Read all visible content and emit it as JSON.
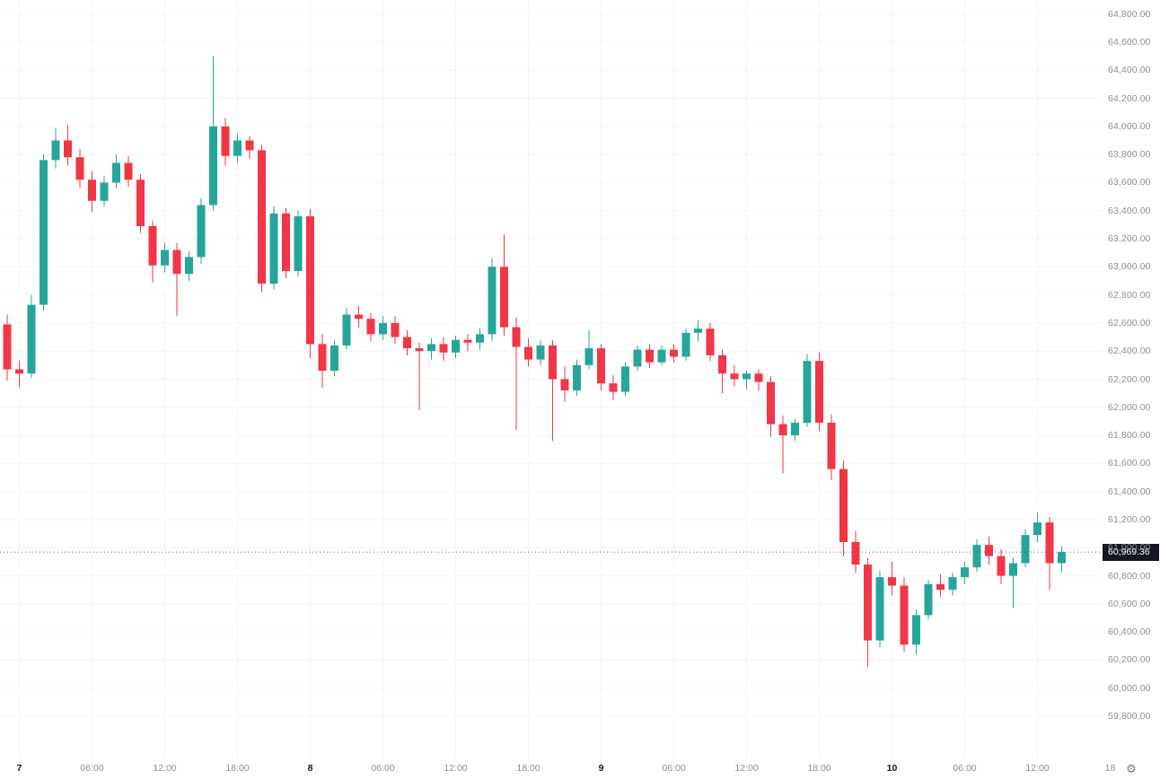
{
  "chart_data": {
    "type": "candlestick",
    "title": "",
    "last_price": 60969.36,
    "last_price_label": "60,969.36",
    "colors": {
      "up": "#26a69a",
      "down": "#f23645",
      "grid": "#f2f4f7",
      "last_price_line": "#555b66",
      "axis_text": "#8a8e99",
      "axis_text_major": "#131722",
      "badge_bg": "#131722",
      "badge_text": "#ffffff"
    },
    "axis": {
      "price_min": 59500,
      "price_max": 64900,
      "price_tick_step": 200,
      "price_ticks": [
        64800,
        64600,
        64400,
        64200,
        64000,
        63800,
        63600,
        63400,
        63200,
        63000,
        62800,
        62600,
        62400,
        62200,
        62000,
        61800,
        61600,
        61400,
        61200,
        61000,
        60800,
        60600,
        60400,
        60200,
        60000,
        59800
      ],
      "price_tick_labels": [
        "64,800.00",
        "64,600.00",
        "64,400.00",
        "64,200.00",
        "64,000.00",
        "63,800.00",
        "63,600.00",
        "63,400.00",
        "63,200.00",
        "63,000.00",
        "62,800.00",
        "62,600.00",
        "62,400.00",
        "62,200.00",
        "62,000.00",
        "61,800.00",
        "61,600.00",
        "61,400.00",
        "61,200.00",
        "61,000.00",
        "60,800.00",
        "60,600.00",
        "60,400.00",
        "60,200.00",
        "60,000.00",
        "59,800.00"
      ],
      "grid_on": true
    },
    "time_ticks": [
      {
        "index": 1,
        "label": "7",
        "major": true
      },
      {
        "index": 7,
        "label": "06:00",
        "major": false
      },
      {
        "index": 13,
        "label": "12:00",
        "major": false
      },
      {
        "index": 19,
        "label": "18:00",
        "major": false
      },
      {
        "index": 25,
        "label": "8",
        "major": true
      },
      {
        "index": 31,
        "label": "06:00",
        "major": false
      },
      {
        "index": 37,
        "label": "12:00",
        "major": false
      },
      {
        "index": 43,
        "label": "18:00",
        "major": false
      },
      {
        "index": 49,
        "label": "9",
        "major": true
      },
      {
        "index": 55,
        "label": "06:00",
        "major": false
      },
      {
        "index": 61,
        "label": "12:00",
        "major": false
      },
      {
        "index": 67,
        "label": "18:00",
        "major": false
      },
      {
        "index": 73,
        "label": "10",
        "major": true
      },
      {
        "index": 79,
        "label": "06:00",
        "major": false
      },
      {
        "index": 85,
        "label": "12:00",
        "major": false
      },
      {
        "index": 91,
        "label": "18",
        "major": false
      }
    ],
    "candles_format": [
      "open",
      "high",
      "low",
      "close"
    ],
    "candles": [
      [
        62590,
        62660,
        62190,
        62270
      ],
      [
        62270,
        62330,
        62140,
        62240
      ],
      [
        62240,
        62800,
        62210,
        62730
      ],
      [
        62730,
        63800,
        62690,
        63760
      ],
      [
        63760,
        63990,
        63700,
        63900
      ],
      [
        63900,
        64010,
        63720,
        63780
      ],
      [
        63780,
        63840,
        63560,
        63620
      ],
      [
        63620,
        63680,
        63390,
        63470
      ],
      [
        63470,
        63650,
        63430,
        63600
      ],
      [
        63600,
        63800,
        63560,
        63740
      ],
      [
        63740,
        63790,
        63570,
        63620
      ],
      [
        63620,
        63660,
        63240,
        63290
      ],
      [
        63290,
        63330,
        62890,
        63010
      ],
      [
        63010,
        63170,
        62960,
        63120
      ],
      [
        63120,
        63170,
        62650,
        62950
      ],
      [
        62950,
        63110,
        62900,
        63070
      ],
      [
        63070,
        63490,
        63020,
        63440
      ],
      [
        63440,
        64500,
        63400,
        64000
      ],
      [
        64000,
        64060,
        63720,
        63790
      ],
      [
        63790,
        63950,
        63740,
        63900
      ],
      [
        63900,
        63930,
        63770,
        63830
      ],
      [
        63830,
        63870,
        62820,
        62880
      ],
      [
        62880,
        63430,
        62840,
        63380
      ],
      [
        63380,
        63420,
        62920,
        62970
      ],
      [
        62970,
        63400,
        62930,
        63360
      ],
      [
        63360,
        63410,
        62350,
        62450
      ],
      [
        62450,
        62520,
        62140,
        62260
      ],
      [
        62260,
        62480,
        62220,
        62440
      ],
      [
        62440,
        62710,
        62410,
        62660
      ],
      [
        62660,
        62720,
        62570,
        62630
      ],
      [
        62630,
        62670,
        62470,
        62520
      ],
      [
        62520,
        62650,
        62480,
        62600
      ],
      [
        62600,
        62650,
        62450,
        62500
      ],
      [
        62500,
        62550,
        62370,
        62420
      ],
      [
        62420,
        62460,
        61980,
        62400
      ],
      [
        62400,
        62490,
        62340,
        62450
      ],
      [
        62450,
        62500,
        62330,
        62390
      ],
      [
        62390,
        62510,
        62350,
        62480
      ],
      [
        62480,
        62520,
        62400,
        62460
      ],
      [
        62460,
        62560,
        62410,
        62520
      ],
      [
        62520,
        63060,
        62470,
        63000
      ],
      [
        63000,
        63230,
        62510,
        62570
      ],
      [
        62570,
        62640,
        61840,
        62430
      ],
      [
        62430,
        62490,
        62290,
        62340
      ],
      [
        62340,
        62480,
        62300,
        62440
      ],
      [
        62440,
        62480,
        61760,
        62200
      ],
      [
        62200,
        62290,
        62040,
        62120
      ],
      [
        62120,
        62340,
        62080,
        62300
      ],
      [
        62300,
        62550,
        62270,
        62420
      ],
      [
        62420,
        62450,
        62120,
        62170
      ],
      [
        62170,
        62230,
        62050,
        62110
      ],
      [
        62110,
        62320,
        62080,
        62290
      ],
      [
        62290,
        62440,
        62260,
        62410
      ],
      [
        62410,
        62450,
        62280,
        62320
      ],
      [
        62320,
        62440,
        62300,
        62410
      ],
      [
        62410,
        62450,
        62320,
        62360
      ],
      [
        62360,
        62560,
        62330,
        62530
      ],
      [
        62530,
        62620,
        62470,
        62560
      ],
      [
        62560,
        62600,
        62330,
        62370
      ],
      [
        62370,
        62410,
        62100,
        62240
      ],
      [
        62240,
        62300,
        62150,
        62200
      ],
      [
        62200,
        62260,
        62130,
        62240
      ],
      [
        62240,
        62270,
        62120,
        62180
      ],
      [
        62180,
        62220,
        61790,
        61880
      ],
      [
        61880,
        61940,
        61530,
        61800
      ],
      [
        61800,
        61920,
        61760,
        61890
      ],
      [
        61890,
        62380,
        61860,
        62330
      ],
      [
        62330,
        62390,
        61830,
        61890
      ],
      [
        61890,
        61950,
        61480,
        61560
      ],
      [
        61560,
        61620,
        60940,
        61040
      ],
      [
        61040,
        61120,
        60820,
        60880
      ],
      [
        60880,
        60930,
        60150,
        60340
      ],
      [
        60340,
        60840,
        60290,
        60790
      ],
      [
        60790,
        60900,
        60660,
        60730
      ],
      [
        60730,
        60790,
        60260,
        60310
      ],
      [
        60310,
        60560,
        60240,
        60520
      ],
      [
        60520,
        60770,
        60490,
        60740
      ],
      [
        60740,
        60810,
        60650,
        60700
      ],
      [
        60700,
        60820,
        60660,
        60790
      ],
      [
        60790,
        60900,
        60740,
        60860
      ],
      [
        60860,
        61060,
        60830,
        61020
      ],
      [
        61020,
        61080,
        60880,
        60940
      ],
      [
        60940,
        60990,
        60740,
        60800
      ],
      [
        60800,
        60930,
        60570,
        60890
      ],
      [
        60890,
        61130,
        60860,
        61090
      ],
      [
        61090,
        61250,
        61040,
        61180
      ],
      [
        61180,
        61220,
        60700,
        60890
      ],
      [
        60890,
        61010,
        60830,
        60969.36
      ]
    ]
  },
  "time_axis": {
    "settings_icon": "⚙"
  }
}
